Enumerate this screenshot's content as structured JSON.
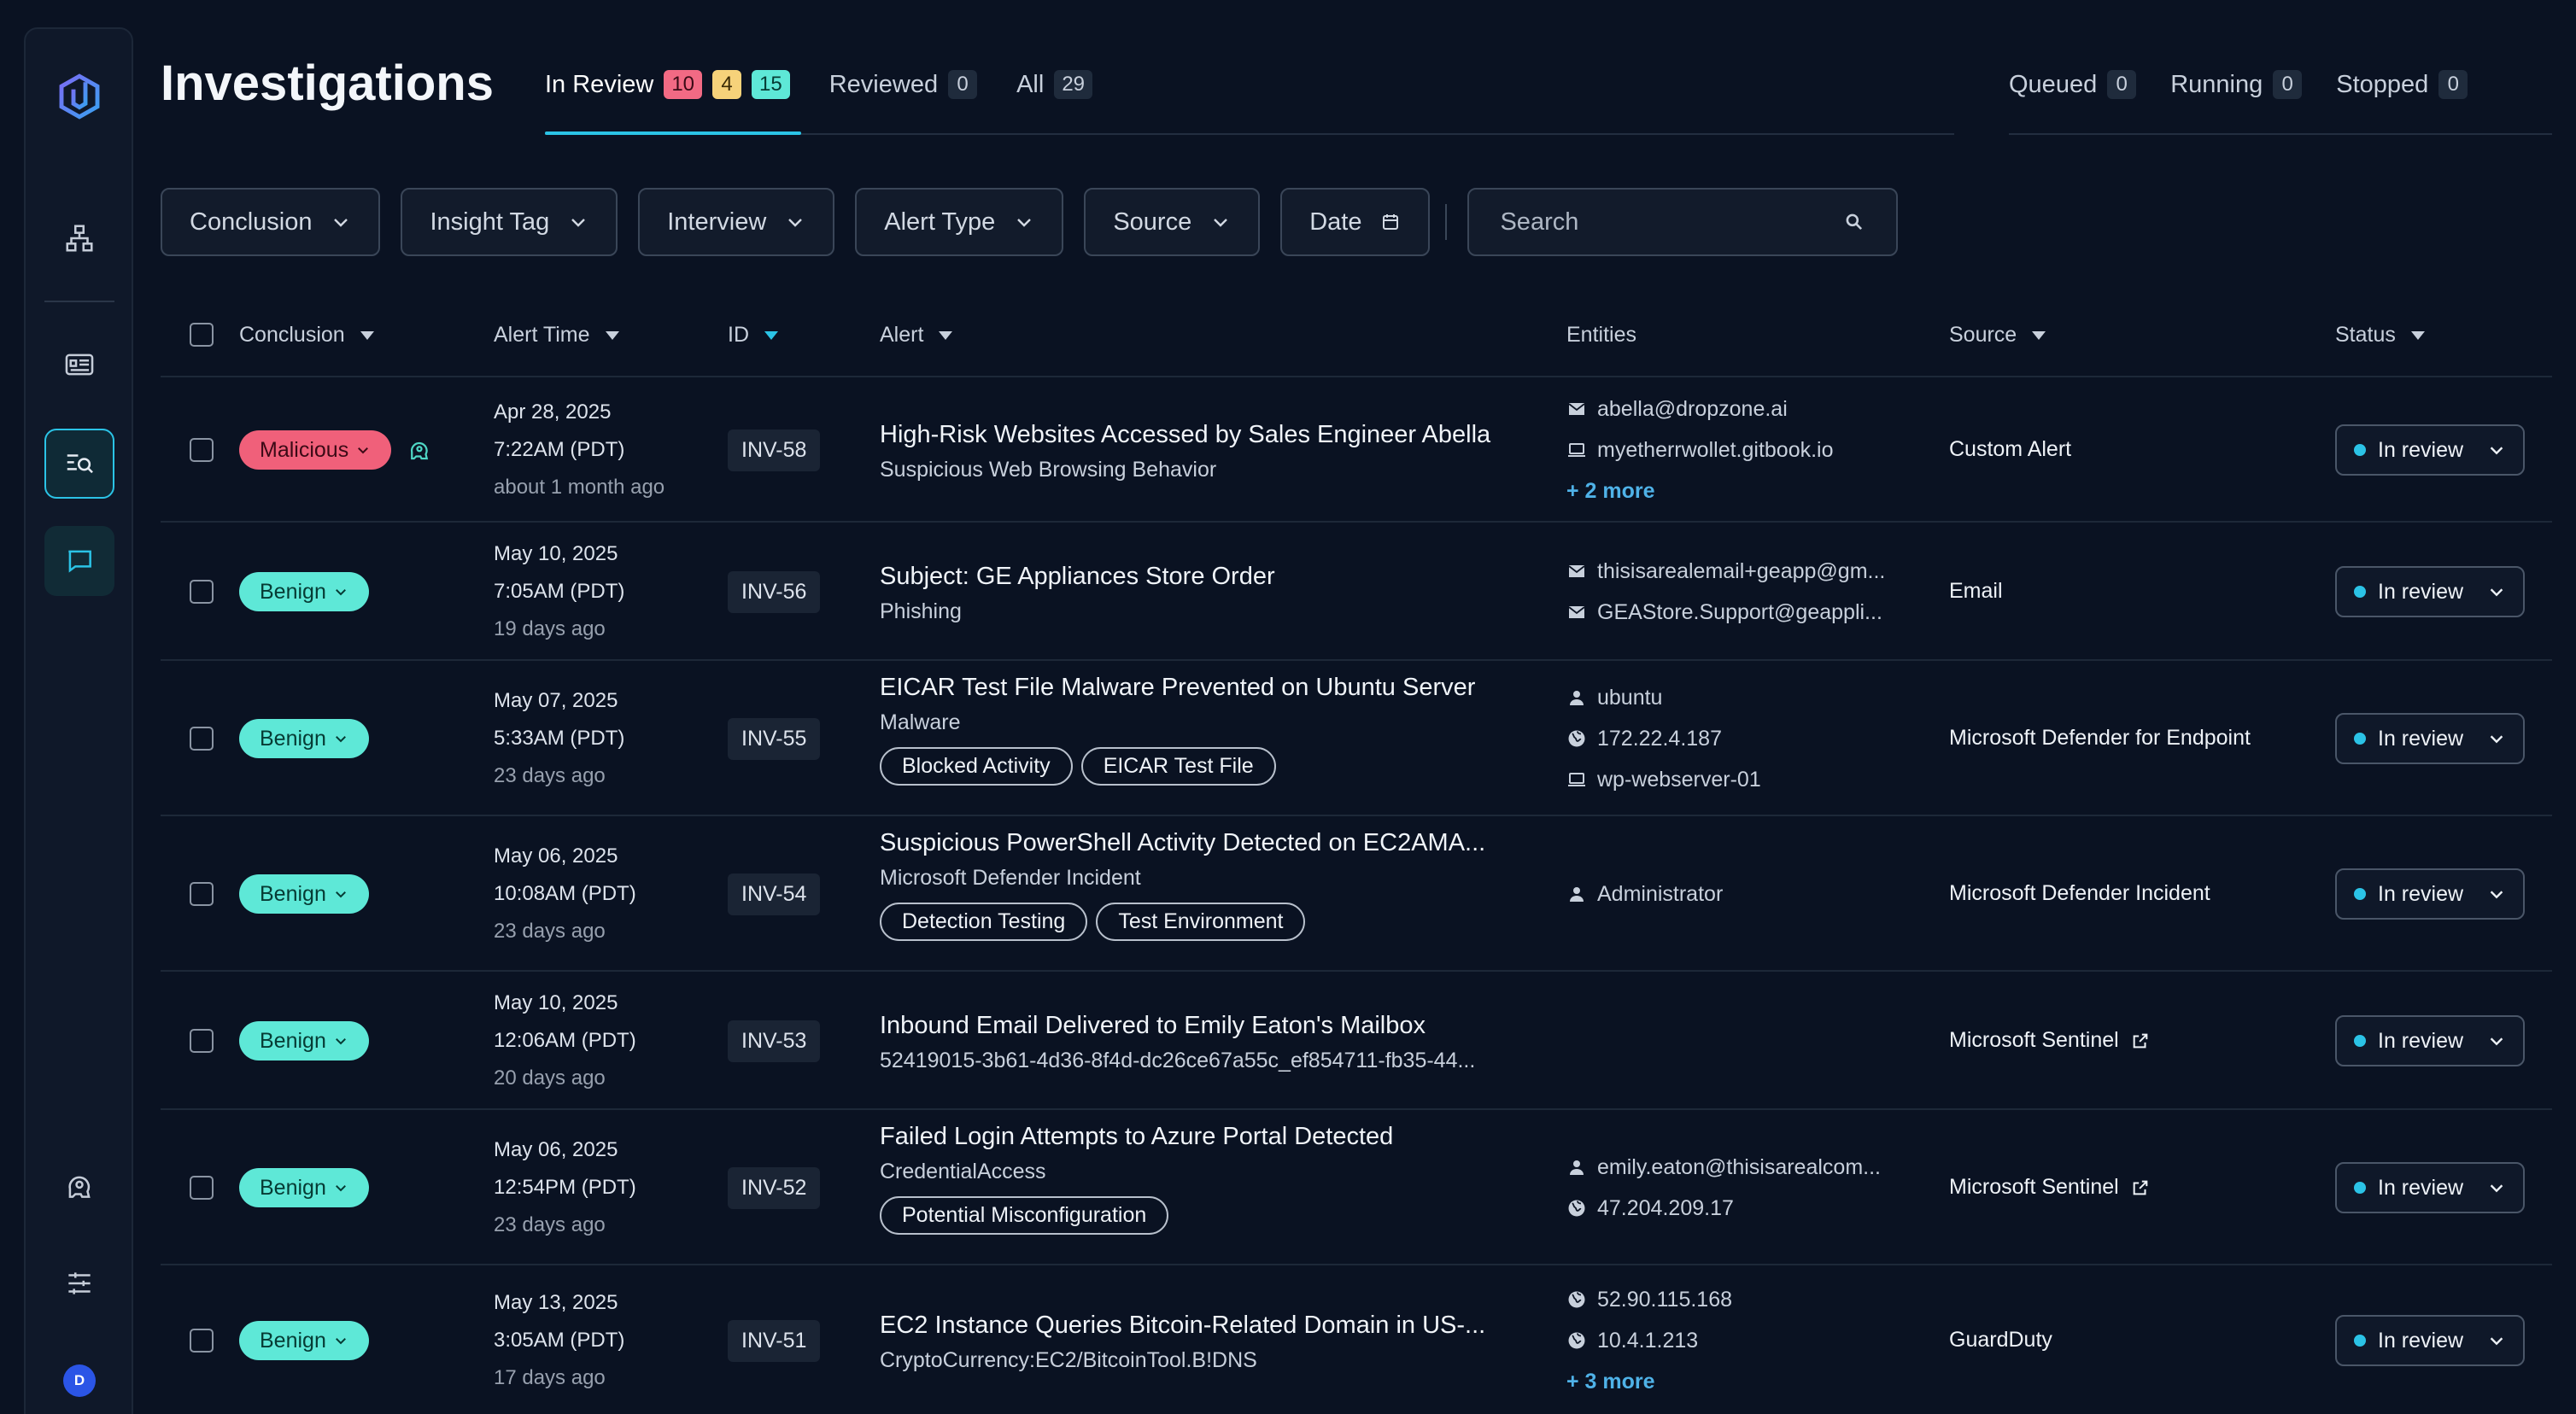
{
  "page_title": "Investigations",
  "tabs": [
    {
      "label": "In Review",
      "badges": [
        "10",
        "4",
        "15"
      ]
    },
    {
      "label": "Reviewed",
      "badges": [
        "0"
      ]
    },
    {
      "label": "All",
      "badges": [
        "29"
      ]
    }
  ],
  "run_tabs": [
    {
      "label": "Queued",
      "count": "0"
    },
    {
      "label": "Running",
      "count": "0"
    },
    {
      "label": "Stopped",
      "count": "0"
    }
  ],
  "filters": [
    "Conclusion",
    "Insight Tag",
    "Interview",
    "Alert Type",
    "Source",
    "Date"
  ],
  "search": {
    "placeholder": "Search"
  },
  "columns": [
    "Conclusion",
    "Alert Time",
    "ID",
    "Alert",
    "Entities",
    "Source",
    "Status"
  ],
  "avatar_initial": "D",
  "colors": {
    "accent": "#2bc3e6",
    "malicious": "#f0607a",
    "benign": "#5ee8d7"
  },
  "rows": [
    {
      "conclusion": "Malicious",
      "conclusion_type": "malicious",
      "date": "Apr 28, 2025",
      "time": "7:22AM (PDT)",
      "ago": "about 1 month ago",
      "id": "INV-58",
      "title": "High-Risk Websites Accessed by Sales Engineer Abella",
      "subtitle": "Suspicious Web Browsing Behavior",
      "tags": [],
      "entities": [
        {
          "icon": "mail-icon",
          "text": "abella@dropzone.ai"
        },
        {
          "icon": "laptop-icon",
          "text": "myetherrwollet.gitbook.io"
        }
      ],
      "more": "+ 2 more",
      "source": "Custom Alert",
      "source_link": false,
      "status": "In review"
    },
    {
      "conclusion": "Benign",
      "conclusion_type": "benign",
      "date": "May 10, 2025",
      "time": "7:05AM (PDT)",
      "ago": "19 days ago",
      "id": "INV-56",
      "title": "Subject: GE Appliances Store Order",
      "subtitle": "Phishing",
      "tags": [],
      "entities": [
        {
          "icon": "mail-icon",
          "text": "thisisarealemail+geapp@gm..."
        },
        {
          "icon": "mail-icon",
          "text": "GEAStore.Support@geappli..."
        }
      ],
      "more": "",
      "source": "Email",
      "source_link": false,
      "status": "In review"
    },
    {
      "conclusion": "Benign",
      "conclusion_type": "benign",
      "date": "May 07, 2025",
      "time": "5:33AM (PDT)",
      "ago": "23 days ago",
      "id": "INV-55",
      "title": "EICAR Test File Malware Prevented on Ubuntu Server",
      "subtitle": "Malware",
      "tags": [
        "Blocked Activity",
        "EICAR Test File"
      ],
      "entities": [
        {
          "icon": "user-icon",
          "text": "ubuntu"
        },
        {
          "icon": "globe-icon",
          "text": "172.22.4.187"
        },
        {
          "icon": "laptop-icon",
          "text": "wp-webserver-01"
        }
      ],
      "more": "",
      "source": "Microsoft Defender for Endpoint",
      "source_link": false,
      "status": "In review"
    },
    {
      "conclusion": "Benign",
      "conclusion_type": "benign",
      "date": "May 06, 2025",
      "time": "10:08AM (PDT)",
      "ago": "23 days ago",
      "id": "INV-54",
      "title": "Suspicious PowerShell Activity Detected on EC2AMA...",
      "subtitle": "Microsoft Defender Incident",
      "tags": [
        "Detection Testing",
        "Test Environment"
      ],
      "entities": [
        {
          "icon": "user-icon",
          "text": "Administrator"
        }
      ],
      "more": "",
      "source": "Microsoft Defender Incident",
      "source_link": false,
      "status": "In review"
    },
    {
      "conclusion": "Benign",
      "conclusion_type": "benign",
      "date": "May 10, 2025",
      "time": "12:06AM (PDT)",
      "ago": "20 days ago",
      "id": "INV-53",
      "title": "Inbound Email Delivered to Emily Eaton's Mailbox",
      "subtitle": "52419015-3b61-4d36-8f4d-dc26ce67a55c_ef854711-fb35-44...",
      "tags": [],
      "entities": [],
      "more": "",
      "source": "Microsoft Sentinel",
      "source_link": true,
      "status": "In review"
    },
    {
      "conclusion": "Benign",
      "conclusion_type": "benign",
      "date": "May 06, 2025",
      "time": "12:54PM (PDT)",
      "ago": "23 days ago",
      "id": "INV-52",
      "title": "Failed Login Attempts to Azure Portal Detected",
      "subtitle": "CredentialAccess",
      "tags": [
        "Potential Misconfiguration"
      ],
      "entities": [
        {
          "icon": "user-icon",
          "text": "emily.eaton@thisisarealcom..."
        },
        {
          "icon": "globe-icon",
          "text": "47.204.209.17"
        }
      ],
      "more": "",
      "source": "Microsoft Sentinel",
      "source_link": true,
      "status": "In review"
    },
    {
      "conclusion": "Benign",
      "conclusion_type": "benign",
      "date": "May 13, 2025",
      "time": "3:05AM (PDT)",
      "ago": "17 days ago",
      "id": "INV-51",
      "title": "EC2 Instance Queries Bitcoin-Related Domain in US-...",
      "subtitle": "CryptoCurrency:EC2/BitcoinTool.B!DNS",
      "tags": [],
      "entities": [
        {
          "icon": "globe-icon",
          "text": "52.90.115.168"
        },
        {
          "icon": "globe-icon",
          "text": "10.4.1.213"
        }
      ],
      "more": "+ 3 more",
      "source": "GuardDuty",
      "source_link": false,
      "status": "In review"
    }
  ]
}
